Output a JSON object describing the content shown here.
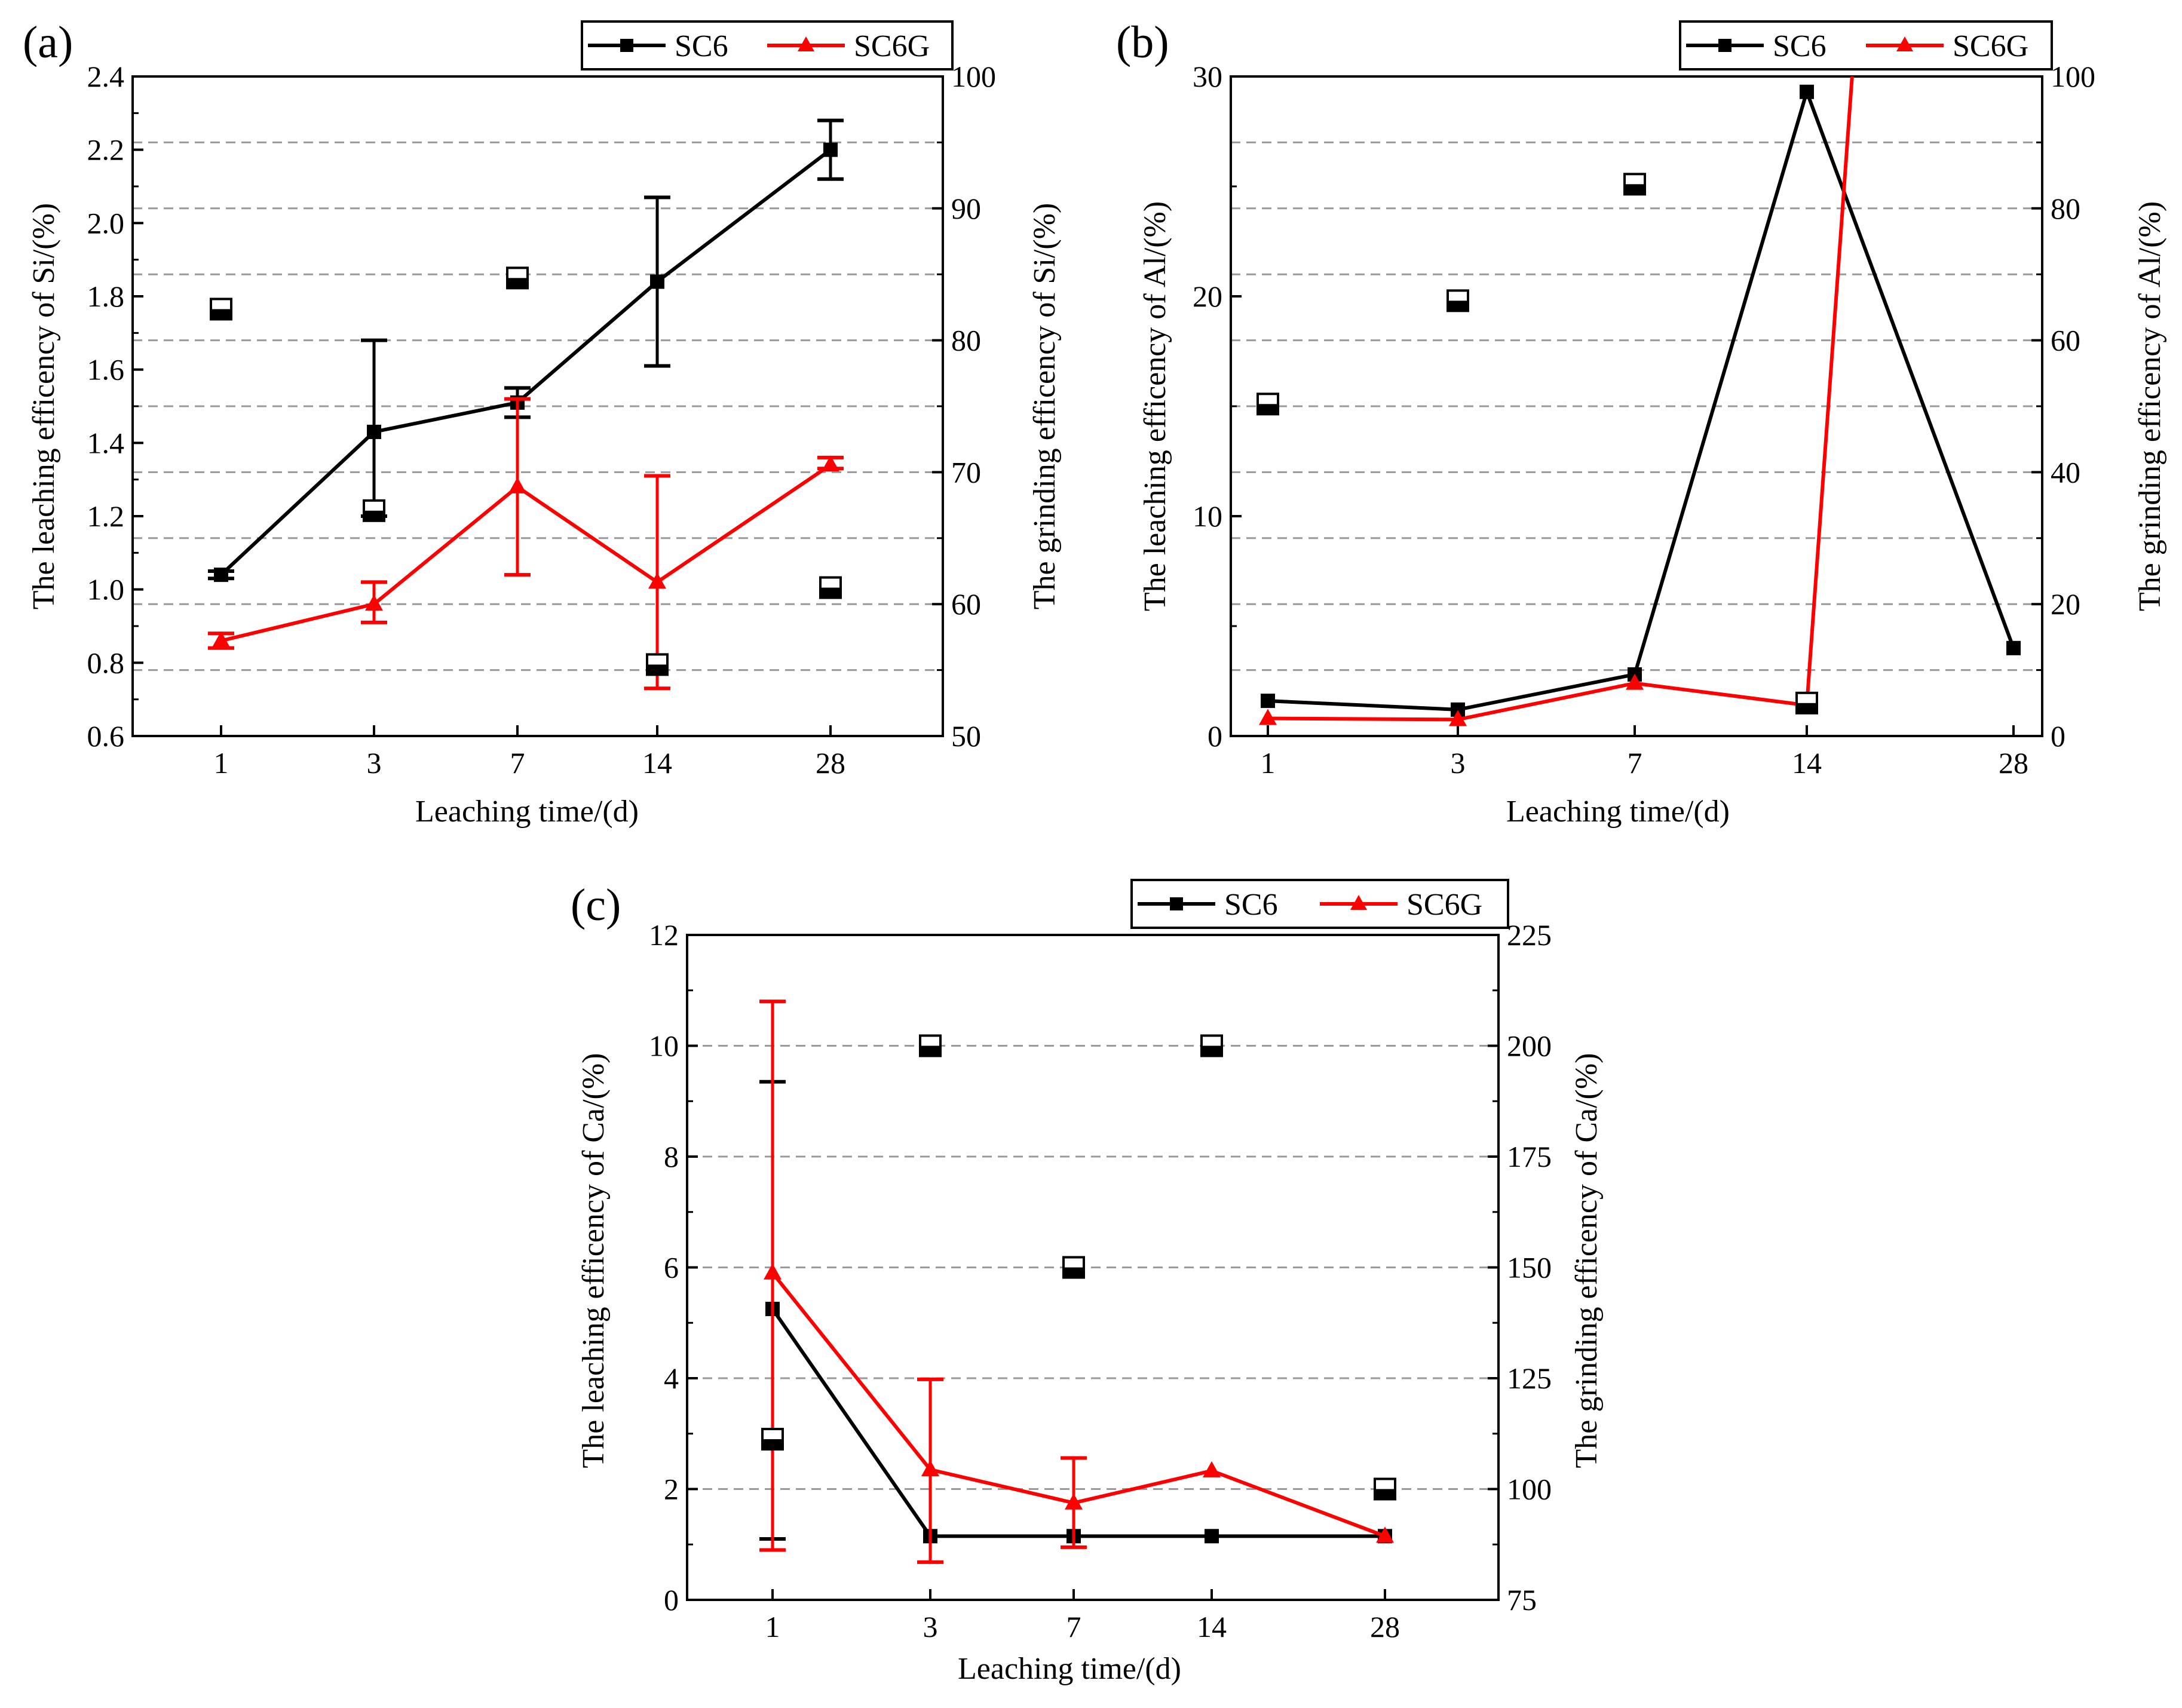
{
  "chart_data": [
    {
      "panel_label": "(a)",
      "type": "line",
      "categories": [
        "1",
        "3",
        "7",
        "14",
        "28"
      ],
      "xlabel": "Leaching time/(d)",
      "ylabel": "The leaching efficency of Si/(%)",
      "ylabel_right": "The grinding efficency of Si/(%)",
      "ylim": [
        0.6,
        2.4
      ],
      "yticks": [
        "0.6",
        "0.8",
        "1.0",
        "1.2",
        "1.4",
        "1.6",
        "1.8",
        "2.0",
        "2.2",
        "2.4"
      ],
      "ylim_right": [
        50,
        100
      ],
      "yticks_right": [
        "50",
        "60",
        "70",
        "80",
        "90",
        "100"
      ],
      "grid_y": [
        0.78,
        0.96,
        1.14,
        1.32,
        1.5,
        1.68,
        1.86,
        2.04,
        2.22
      ],
      "legend": {
        "position": "top-right",
        "entries": [
          "SC6",
          "SC6G"
        ]
      },
      "series": [
        {
          "name": "SC6",
          "color": "#000000",
          "marker": "square",
          "values": [
            1.04,
            1.43,
            1.51,
            1.84,
            2.2
          ],
          "err_low": [
            1.03,
            1.2,
            1.47,
            1.61,
            2.12
          ],
          "err_high": [
            1.05,
            1.68,
            1.55,
            2.07,
            2.28
          ]
        },
        {
          "name": "SC6G",
          "color": "#ff0000",
          "marker": "triangle",
          "values": [
            0.86,
            0.96,
            1.28,
            1.02,
            1.34
          ],
          "err_low": [
            0.84,
            0.91,
            1.04,
            0.73,
            1.33
          ],
          "err_high": [
            0.88,
            1.02,
            1.52,
            1.31,
            1.36
          ]
        }
      ],
      "half_filled_markers": [
        {
          "x": "1",
          "y": 1.765
        },
        {
          "x": "3",
          "y": 1.215
        },
        {
          "x": "7",
          "y": 1.85
        },
        {
          "x": "14",
          "y": 0.795
        },
        {
          "x": "28",
          "y": 1.005
        }
      ]
    },
    {
      "panel_label": "(b)",
      "type": "line",
      "categories": [
        "1",
        "3",
        "7",
        "14",
        "28"
      ],
      "xlabel": "Leaching time/(d)",
      "ylabel": "The leaching efficency of Al/(%)",
      "ylabel_right": "The grinding efficency of Al/(%)",
      "ylim": [
        0,
        30
      ],
      "yticks": [
        "0",
        "10",
        "20",
        "30"
      ],
      "ylim_right": [
        0,
        100
      ],
      "yticks_right": [
        "0",
        "20",
        "40",
        "60",
        "80",
        "100"
      ],
      "grid_y": [
        3,
        6,
        9,
        12,
        15,
        18,
        21,
        24,
        27
      ],
      "legend": {
        "position": "top-right",
        "entries": [
          "SC6",
          "SC6G"
        ]
      },
      "series": [
        {
          "name": "SC6",
          "color": "#000000",
          "marker": "square",
          "values": [
            1.6,
            1.2,
            2.8,
            29.3,
            4.0
          ]
        },
        {
          "name": "SC6G",
          "color": "#ff0000",
          "marker": "triangle",
          "values": [
            0.8,
            0.75,
            2.4,
            1.4,
            null
          ],
          "exit_line_top_at_x": 3.22
        }
      ],
      "half_filled_markers": [
        {
          "x": "1",
          "y": 15.1
        },
        {
          "x": "3",
          "y": 19.8
        },
        {
          "x": "7",
          "y": 25.1
        },
        {
          "x": "14",
          "y": 1.5
        }
      ]
    },
    {
      "panel_label": "(c)",
      "type": "line",
      "categories": [
        "1",
        "3",
        "7",
        "14",
        "28"
      ],
      "xlabel": "Leaching time/(d)",
      "ylabel": "The leaching efficency of Ca/(%)",
      "ylabel_right": "The grinding efficency of Ca/(%)",
      "ylim": [
        0,
        12
      ],
      "yticks": [
        "0",
        "2",
        "4",
        "6",
        "8",
        "10",
        "12"
      ],
      "ylim_right": [
        75,
        225
      ],
      "yticks_right": [
        "75",
        "100",
        "125",
        "150",
        "175",
        "200",
        "225"
      ],
      "grid_y": [
        2,
        4,
        6,
        8,
        10
      ],
      "legend": {
        "position": "top-right",
        "entries": [
          "SC6",
          "SC6G"
        ]
      },
      "series": [
        {
          "name": "SC6",
          "color": "#000000",
          "marker": "square",
          "values": [
            5.25,
            1.15,
            1.15,
            1.15,
            1.15
          ],
          "err_low": [
            1.1,
            null,
            null,
            null,
            null
          ],
          "err_high": [
            9.35,
            null,
            null,
            null,
            null
          ]
        },
        {
          "name": "SC6G",
          "color": "#ff0000",
          "marker": "triangle",
          "values": [
            5.9,
            2.35,
            1.75,
            2.33,
            1.15
          ],
          "err_low": [
            0.9,
            0.68,
            0.95,
            null,
            null
          ],
          "err_high": [
            10.8,
            3.98,
            2.56,
            null,
            null
          ]
        }
      ],
      "half_filled_markers": [
        {
          "x": "1",
          "y": 2.9
        },
        {
          "x": "3",
          "y": 10.0
        },
        {
          "x": "7",
          "y": 6.0
        },
        {
          "x": "14",
          "y": 10.0
        },
        {
          "x": "28",
          "y": 2.0
        }
      ]
    }
  ]
}
